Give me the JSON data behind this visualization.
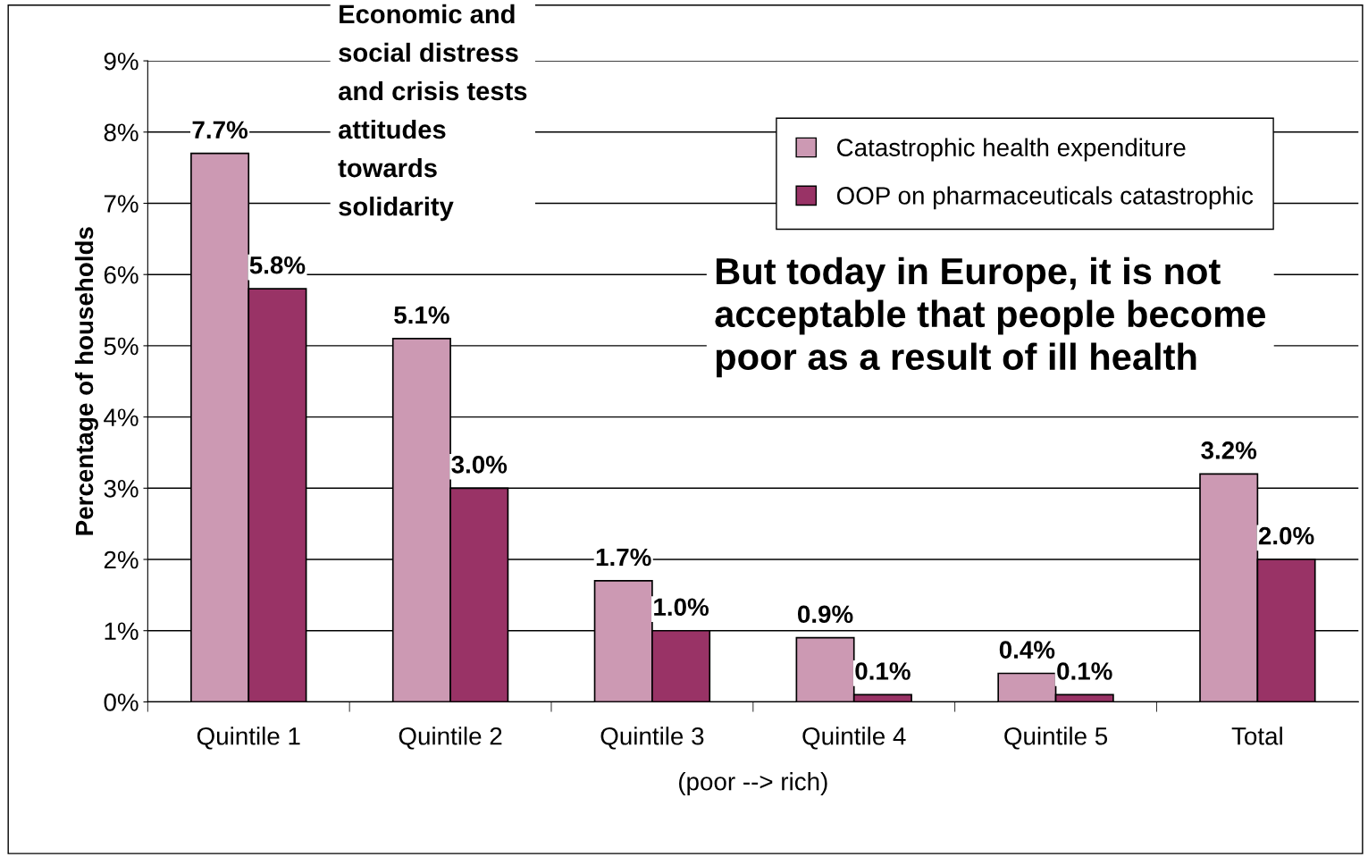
{
  "chart_data": {
    "type": "bar",
    "categories": [
      "Quintile 1",
      "Quintile 2",
      "Quintile 3",
      "Quintile 4",
      "Quintile 5",
      "Total"
    ],
    "xlabel": "(poor --> rich)",
    "ylabel": "Percentage of households",
    "series": [
      {
        "name": "Catastrophic health expenditure",
        "color": "#cc99b3",
        "values": [
          7.7,
          5.1,
          1.7,
          0.9,
          0.4,
          3.2
        ]
      },
      {
        "name": "OOP on pharmaceuticals catastrophic",
        "color": "#993366",
        "values": [
          5.8,
          3.0,
          1.0,
          0.1,
          0.1,
          2.0
        ]
      }
    ],
    "ylim": [
      0,
      9
    ],
    "yticks": [
      {
        "value": 0,
        "label": "0%"
      },
      {
        "value": 1,
        "label": "1%"
      },
      {
        "value": 2,
        "label": "2%"
      },
      {
        "value": 3,
        "label": "3%"
      },
      {
        "value": 4,
        "label": "4%"
      },
      {
        "value": 5,
        "label": "5%"
      },
      {
        "value": 6,
        "label": "6%"
      },
      {
        "value": 7,
        "label": "7%"
      },
      {
        "value": 8,
        "label": "8%"
      },
      {
        "value": 9,
        "label": "9%"
      }
    ],
    "grid": "y",
    "legend": "top right",
    "value_labels": [
      [
        "7.7%",
        "5.1%",
        "1.7%",
        "0.9%",
        "0.4%",
        "3.2%"
      ],
      [
        "5.8%",
        "3.0%",
        "1.0%",
        "0.1%",
        "0.1%",
        "2.0%"
      ]
    ],
    "annotations": [
      "Economic and\nsocial distress\nand crisis tests\nattitudes\ntowards\nsolidarity",
      "But today in Europe, it is not\nacceptable that people become\npoor as a result of ill health"
    ]
  }
}
